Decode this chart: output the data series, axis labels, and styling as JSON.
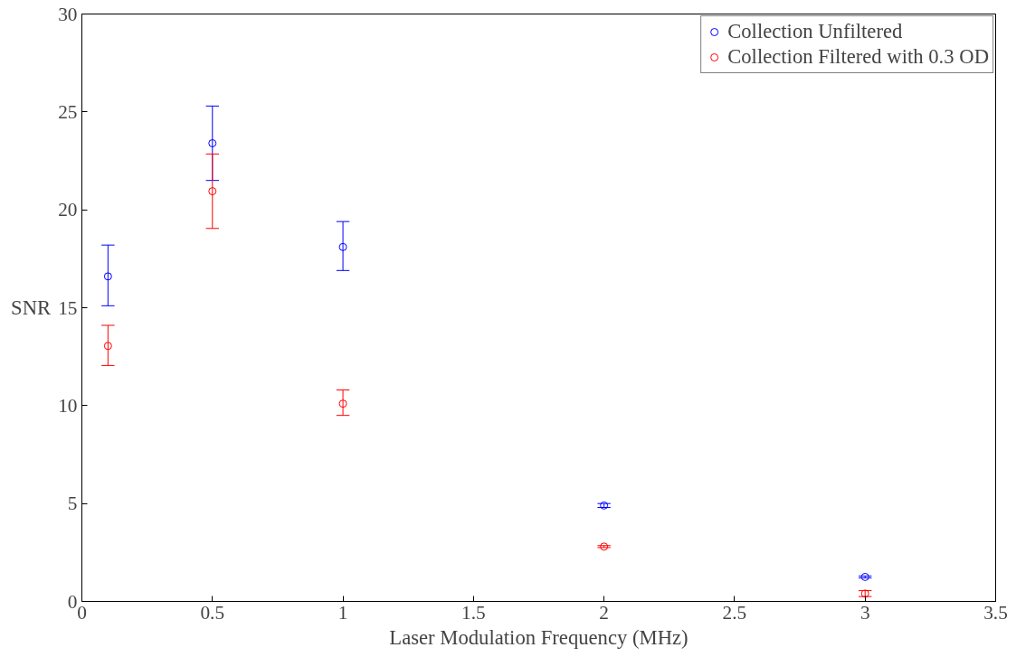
{
  "chart_data": {
    "type": "scatter",
    "xlabel": "Laser Modulation Frequency (MHz)",
    "ylabel": "SNR",
    "x": [
      0.1,
      0.5,
      1,
      2,
      3
    ],
    "series": [
      {
        "name": "Collection Unfiltered",
        "color": "#0000ff",
        "values": [
          16.6,
          23.4,
          18.1,
          4.9,
          1.25
        ],
        "errors": [
          [
            15.1,
            18.2
          ],
          [
            21.5,
            25.3
          ],
          [
            16.9,
            19.4
          ],
          [
            4.8,
            5.0
          ],
          [
            1.2,
            1.3
          ]
        ]
      },
      {
        "name": "Collection Filtered with 0.3 OD",
        "color": "#ff0000",
        "values": [
          13.05,
          20.95,
          10.1,
          2.8,
          0.4
        ],
        "errors": [
          [
            12.05,
            14.1
          ],
          [
            19.05,
            22.85
          ],
          [
            9.5,
            10.8
          ],
          [
            2.75,
            2.85
          ],
          [
            0.25,
            0.55
          ]
        ]
      }
    ],
    "xlim": [
      0,
      3.5
    ],
    "xticks": [
      0,
      0.5,
      1,
      1.5,
      2,
      2.5,
      3,
      3.5
    ],
    "ylim": [
      0,
      30
    ],
    "yticks": [
      0,
      5,
      10,
      15,
      20,
      25,
      30
    ],
    "marker": "circle",
    "grid": false,
    "legend": "top right"
  }
}
